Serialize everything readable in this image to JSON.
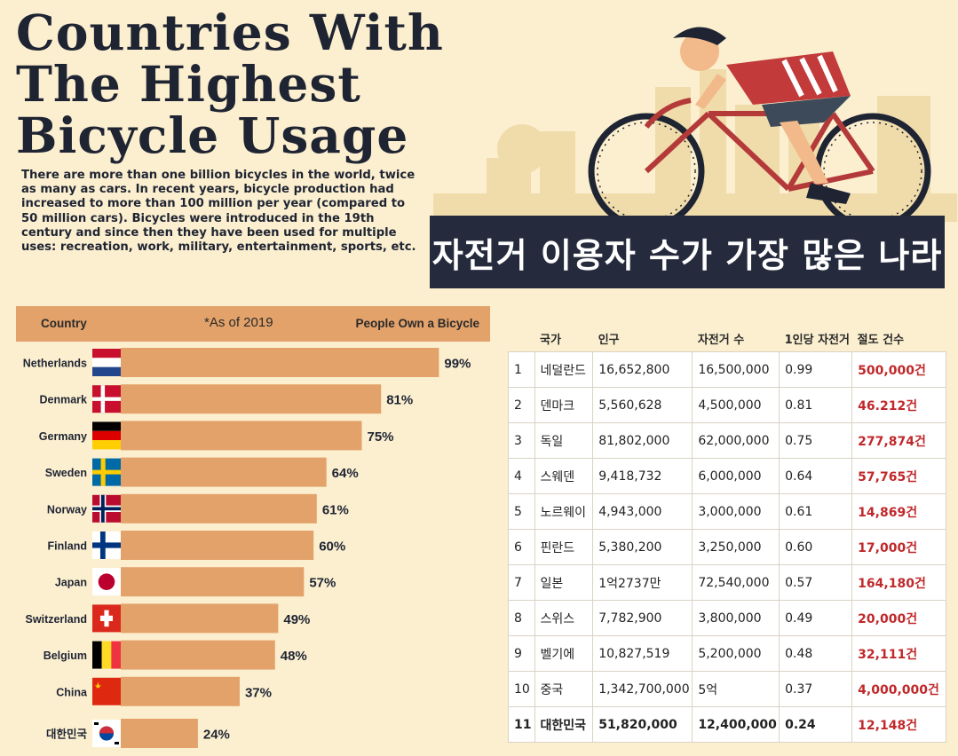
{
  "title_lines": [
    "Countries With",
    "The Highest",
    "Bicycle Usage"
  ],
  "intro": "There are more than one billion bicycles in the world, twice as many as cars. In recent years, bicycle production had increased to more than 100 million per year (compared to 50 million cars). Bicycles were introduced in the 19th century and since then they have been used for multiple uses: recreation, work, military, entertainment, sports, etc.",
  "korean_title": "자전거 이용자 수가 가장 많은 나라",
  "chart_header": {
    "country": "Country",
    "note": "*As of 2019",
    "metric": "People Own a Bicycle"
  },
  "colors": {
    "bar": "#e3a26a",
    "background": "#fbefcf",
    "banner": "#252b3d",
    "title": "#1f2433",
    "theft": "#c0282b"
  },
  "chart_data": {
    "type": "bar",
    "orientation": "horizontal",
    "categories": [
      "Netherlands",
      "Denmark",
      "Germany",
      "Sweden",
      "Norway",
      "Finland",
      "Japan",
      "Switzerland",
      "Belgium",
      "China",
      "대한민국"
    ],
    "values": [
      99,
      81,
      75,
      64,
      61,
      60,
      57,
      49,
      48,
      37,
      24
    ],
    "value_labels": [
      "99%",
      "81%",
      "75%",
      "64%",
      "61%",
      "60%",
      "57%",
      "49%",
      "48%",
      "37%",
      "24%"
    ],
    "flags": [
      "netherlands-flag",
      "denmark-flag",
      "germany-flag",
      "sweden-flag",
      "norway-flag",
      "finland-flag",
      "japan-flag",
      "switzerland-flag",
      "belgium-flag",
      "china-flag",
      "south-korea-flag"
    ],
    "xlim": [
      0,
      100
    ],
    "title": "",
    "xlabel": "",
    "ylabel": ""
  },
  "table": {
    "headers": [
      "",
      "국가",
      "인구",
      "자전거 수",
      "1인당 자전거",
      "절도 건수"
    ],
    "rows": [
      [
        "1",
        "네덜란드",
        "16,652,800",
        "16,500,000",
        "0.99",
        "500,000건"
      ],
      [
        "2",
        "덴마크",
        "5,560,628",
        "4,500,000",
        "0.81",
        "46.212건"
      ],
      [
        "3",
        "독일",
        "81,802,000",
        "62,000,000",
        "0.75",
        "277,874건"
      ],
      [
        "4",
        "스웨덴",
        "9,418,732",
        "6,000,000",
        "0.64",
        "57,765건"
      ],
      [
        "5",
        "노르웨이",
        "4,943,000",
        "3,000,000",
        "0.61",
        "14,869건"
      ],
      [
        "6",
        "핀란드",
        "5,380,200",
        "3,250,000",
        "0.60",
        "17,000건"
      ],
      [
        "7",
        "일본",
        "1억2737만",
        "72,540,000",
        "0.57",
        "164,180건"
      ],
      [
        "8",
        "스위스",
        "7,782,900",
        "3,800,000",
        "0.49",
        "20,000건"
      ],
      [
        "9",
        "벨기에",
        "10,827,519",
        "5,200,000",
        "0.48",
        "32,111건"
      ],
      [
        "10",
        "중국",
        "1,342,700,000",
        "5억",
        "0.37",
        "4,000,000건"
      ],
      [
        "11",
        "대한민국",
        "51,820,000",
        "12,400,000",
        "0.24",
        "12,148건"
      ]
    ]
  }
}
